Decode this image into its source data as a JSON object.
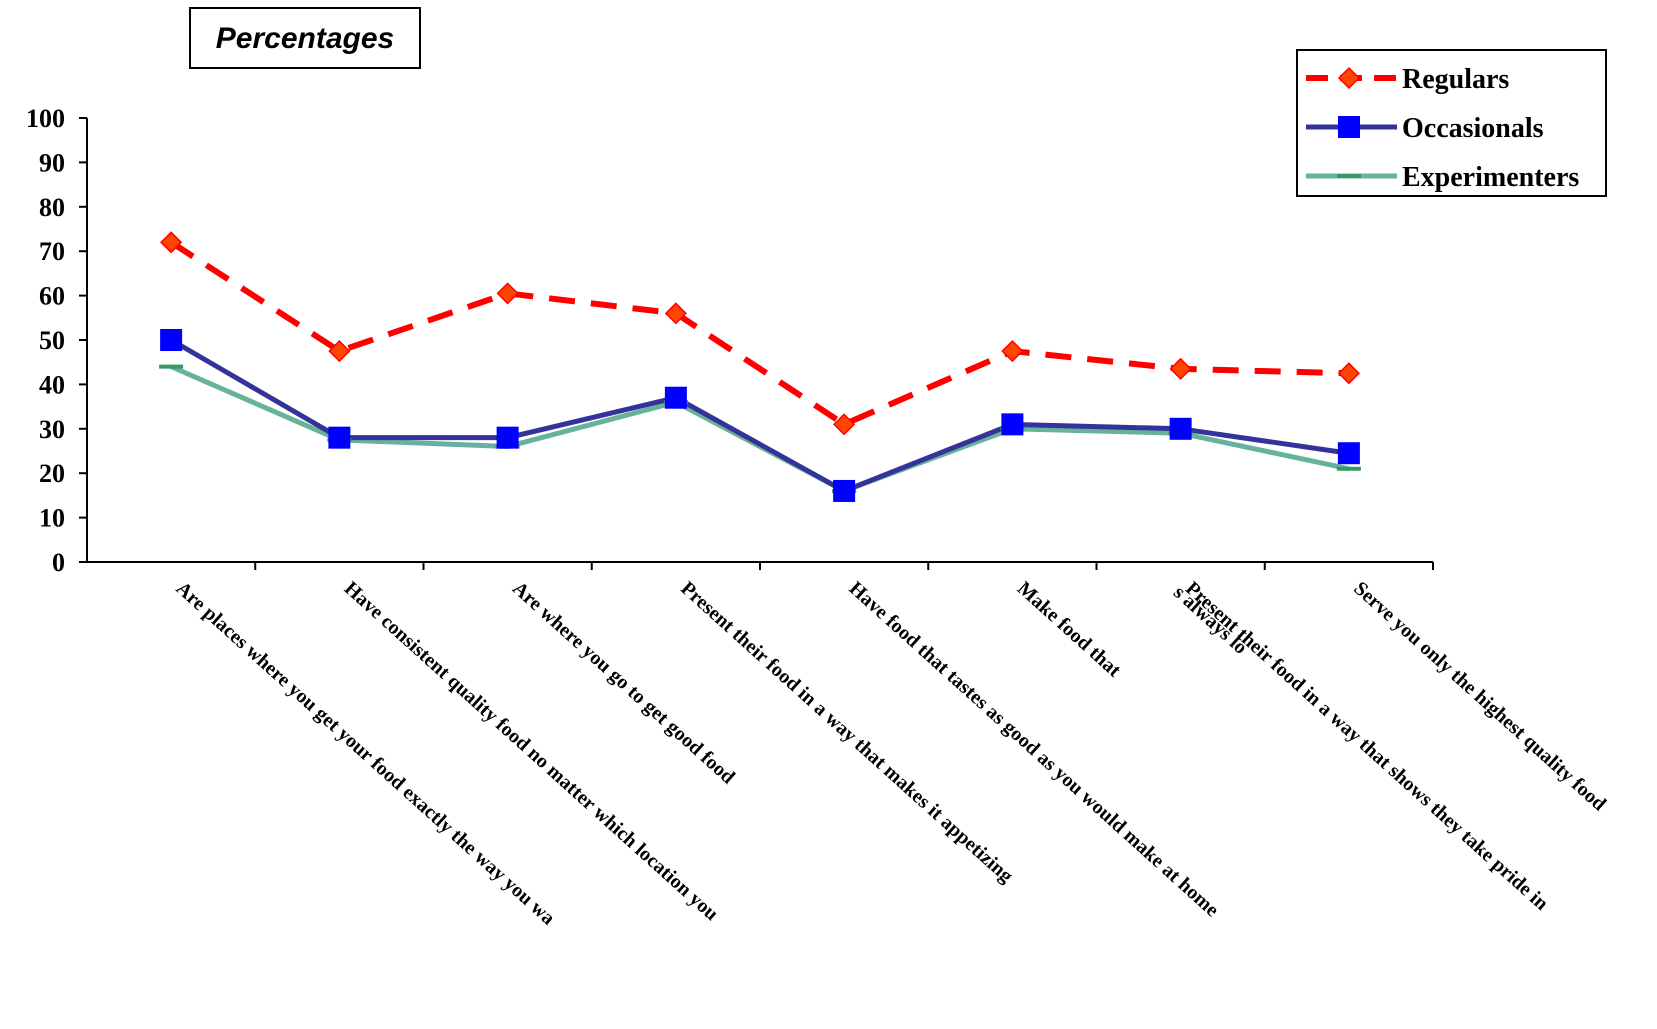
{
  "chart_data": {
    "type": "line",
    "title": "Percentages",
    "xlabel": "",
    "ylabel": "",
    "ylim": [
      0,
      100
    ],
    "yticks": [
      0,
      10,
      20,
      30,
      40,
      50,
      60,
      70,
      80,
      90,
      100
    ],
    "grid": false,
    "legend_position": "top-right",
    "categories": [
      "Are places where you get your food exactly the way you wa",
      "Have consistent quality food no matter which location you",
      "Are where you go to get good food",
      "Present their food in a way that makes it appetizing",
      "Have food that tastes as good as you would make at home",
      "Make food that",
      "Present their food in a way that  shows they take pride in",
      "Serve you only the highest quality food"
    ],
    "overlap_text": "s always lo",
    "series": [
      {
        "name": "Regulars",
        "color": "#ff0000",
        "marker": "diamond",
        "marker_color": "#ff4500",
        "values": [
          72,
          47.5,
          60.5,
          56,
          31,
          47.5,
          43.5,
          42.5
        ]
      },
      {
        "name": "Occasionals",
        "color": "#333399",
        "marker": "square",
        "marker_color": "#0000ff",
        "values": [
          50,
          28,
          28,
          37,
          16,
          31,
          30,
          24.5
        ]
      },
      {
        "name": "Experimenters",
        "color": "#66b29a",
        "marker": "dash",
        "marker_color": "#339966",
        "values": [
          44,
          27.5,
          26,
          36,
          16,
          30,
          29,
          21
        ]
      }
    ]
  }
}
